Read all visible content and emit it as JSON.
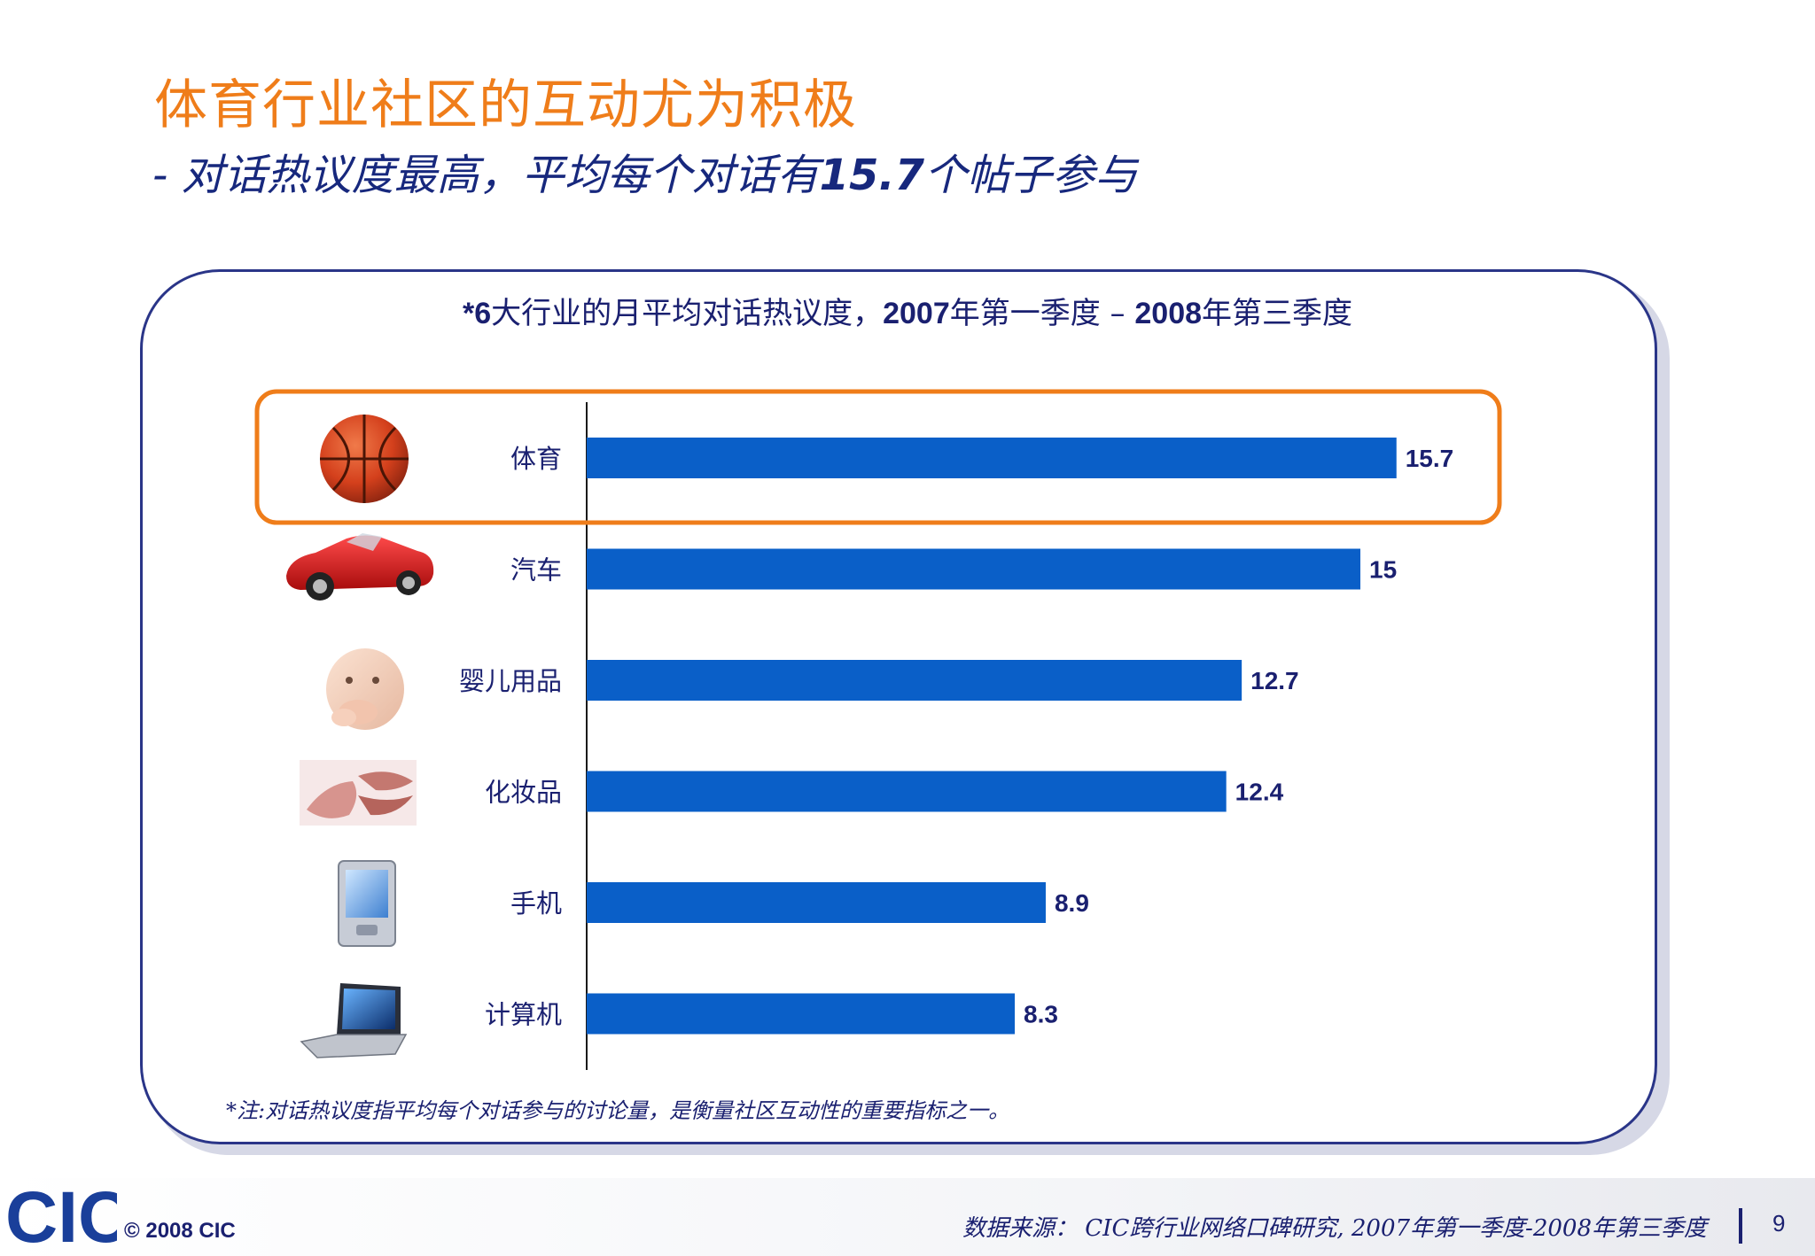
{
  "title": "体育行业社区的互动尤为积极",
  "subtitle": {
    "prefix": "- 对话热议度最高，平均每个对话有",
    "highlight": "15.7",
    "suffix": "个帖子参与"
  },
  "chart_data": {
    "type": "bar",
    "orientation": "horizontal",
    "title_parts": [
      "*6",
      "大行业的月平均对话热议度，",
      "2007",
      "年第一季度 – ",
      "2008",
      "年第三季度"
    ],
    "categories": [
      "体育",
      "汽车",
      "婴儿用品",
      "化妆品",
      "手机",
      "计算机"
    ],
    "values": [
      15.7,
      15,
      12.7,
      12.4,
      8.9,
      8.3
    ],
    "value_labels": [
      "15.7",
      "15",
      "12.7",
      "12.4",
      "8.9",
      "8.3"
    ],
    "icons": [
      "basketball-icon",
      "car-icon",
      "baby-icon",
      "lips-icon",
      "mobile-phone-icon",
      "laptop-icon"
    ],
    "highlighted_category": "体育",
    "xlim": [
      0,
      16
    ],
    "bar_color": "#0a5fc8",
    "highlight_color": "#ef7d1a",
    "grid": false
  },
  "footnote": "*注:对话热议度指平均每个对话参与的讨论量，是衡量社区互动性的重要指标之一。",
  "footer": {
    "logo_text": "CIC",
    "copyright": "© 2008  CIC",
    "source": "数据来源：  CIC跨行业网络口碑研究, 2007年第一季度-2008年第三季度",
    "page_number": "9"
  }
}
